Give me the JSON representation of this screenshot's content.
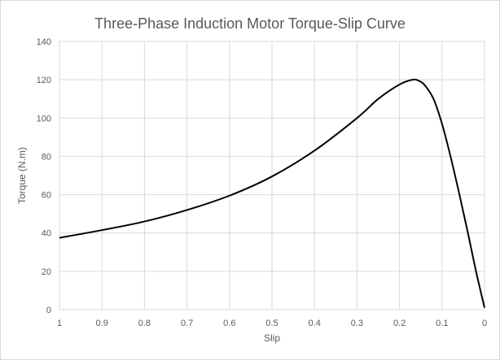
{
  "chart_data": {
    "type": "line",
    "title": "Three-Phase Induction Motor Torque-Slip Curve",
    "xlabel": "Slip",
    "ylabel": "Torque (N.m)",
    "xlim": [
      1,
      0
    ],
    "ylim": [
      0,
      140
    ],
    "x_reversed": true,
    "grid": true,
    "legend": "none",
    "x_ticks": [
      "1",
      "0.9",
      "0.8",
      "0.7",
      "0.6",
      "0.5",
      "0.4",
      "0.3",
      "0.2",
      "0.1",
      "0"
    ],
    "y_ticks": [
      "0",
      "20",
      "40",
      "60",
      "80",
      "100",
      "120",
      "140"
    ],
    "series": [
      {
        "color": "#000000",
        "x": [
          1.0,
          0.9,
          0.8,
          0.7,
          0.6,
          0.5,
          0.4,
          0.3,
          0.25,
          0.2,
          0.17,
          0.155,
          0.14,
          0.12,
          0.1,
          0.08,
          0.06,
          0.04,
          0.02,
          0.0
        ],
        "y": [
          37.5,
          41.5,
          46,
          52,
          59.5,
          69.5,
          83,
          100,
          110,
          117.5,
          120,
          119.5,
          117,
          110,
          97,
          80,
          61,
          41,
          20,
          1
        ]
      }
    ]
  },
  "colors": {
    "grid": "#d9d9d9",
    "text": "#595959",
    "line": "#000000"
  }
}
